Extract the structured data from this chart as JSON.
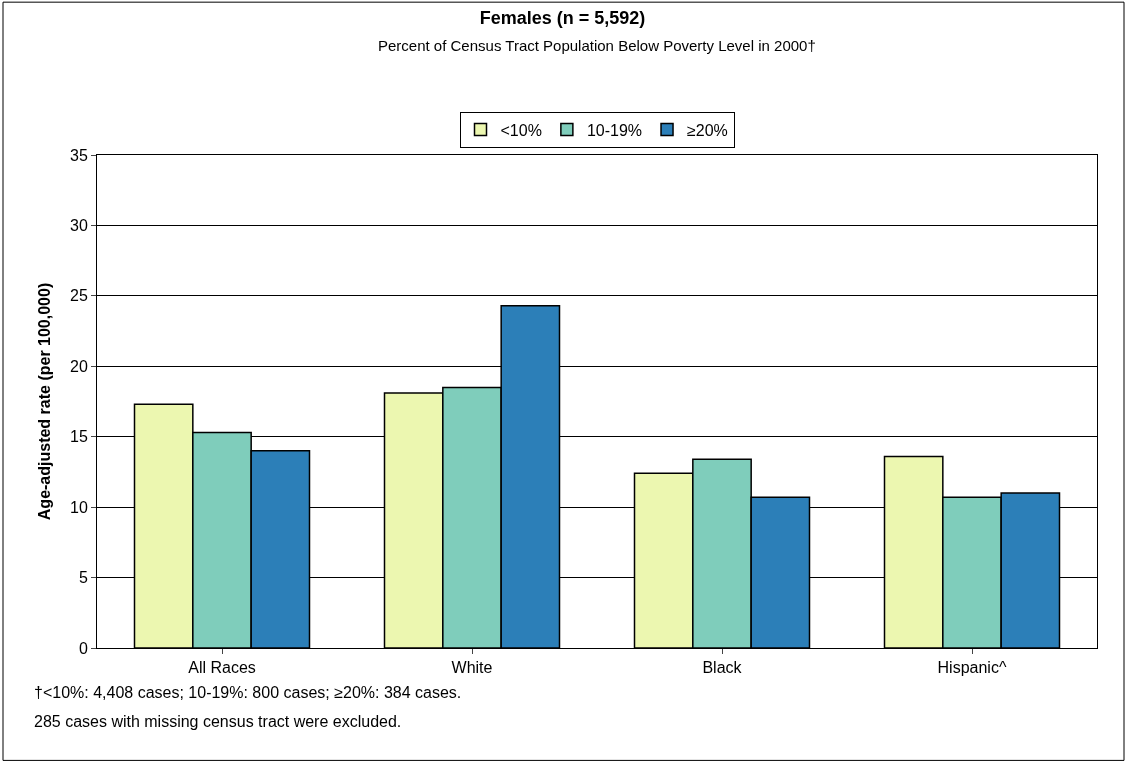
{
  "chart_data": {
    "type": "bar",
    "title": "Females (n = 5,592)",
    "subtitle": "Percent of Census Tract Population Below Poverty Level in 2000†",
    "ylabel": "Age-adjusted rate (per 100,000)",
    "categories": [
      "All Races",
      "White",
      "Black",
      "Hispanic^"
    ],
    "series": [
      {
        "name": "<10%",
        "color": "#ecf7b0",
        "values": [
          17.3,
          18.1,
          12.4,
          13.6
        ]
      },
      {
        "name": "10-19%",
        "color": "#7fcdbb",
        "values": [
          15.3,
          18.5,
          13.4,
          10.7
        ]
      },
      {
        "name": "≥20%",
        "color": "#2c7fb8",
        "values": [
          14.0,
          24.3,
          10.7,
          11.0
        ]
      }
    ],
    "ylim": [
      0,
      35
    ],
    "yticks": [
      0,
      5,
      10,
      15,
      20,
      25,
      30,
      35
    ],
    "grid": "y",
    "legend": "top",
    "annotations": [
      "†<10%: 4,408 cases; 10-19%: 800 cases; ≥20%: 384 cases.",
      "285 cases with missing census tract were excluded."
    ]
  }
}
